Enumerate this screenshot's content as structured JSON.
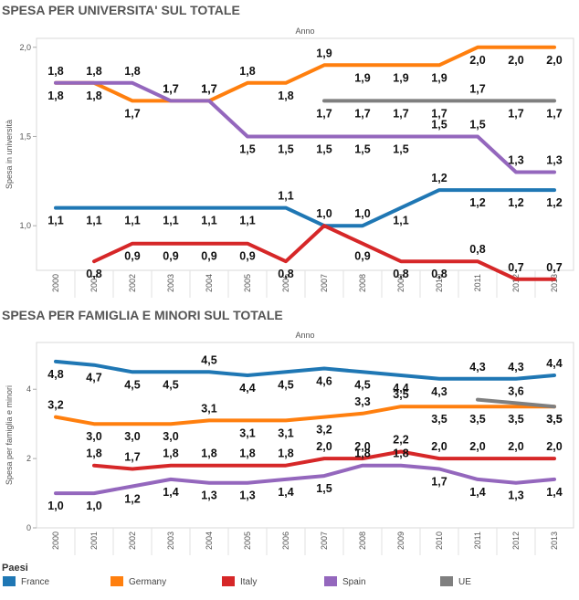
{
  "legend": {
    "title": "Paesi",
    "items": [
      {
        "name": "France",
        "color": "#1f77b4"
      },
      {
        "name": "Germany",
        "color": "#ff7f0e"
      },
      {
        "name": "Italy",
        "color": "#d62728"
      },
      {
        "name": "Spain",
        "color": "#9467bd"
      },
      {
        "name": "UE",
        "color": "#7f7f7f"
      }
    ]
  },
  "chart_data": [
    {
      "type": "line",
      "title": "SPESA PER UNIVERSITA' SUL TOTALE",
      "xlabel": "Anno",
      "ylabel": "Spesa in università",
      "categories": [
        "2000",
        "2001",
        "2002",
        "2003",
        "2004",
        "2005",
        "2006",
        "2007",
        "2008",
        "2009",
        "2010",
        "2011",
        "2012",
        "2013"
      ],
      "yticks": [
        1.0,
        1.5,
        2.0
      ],
      "ytick_labels": [
        "1,0",
        "1,5",
        "2,0"
      ],
      "ylim": [
        0.75,
        2.05
      ],
      "grid": false,
      "series": [
        {
          "name": "France",
          "color": "#1f77b4",
          "values": [
            1.1,
            1.1,
            1.1,
            1.1,
            1.1,
            1.1,
            1.1,
            1.0,
            1.0,
            1.1,
            1.2,
            1.2,
            1.2,
            1.2
          ],
          "labels": [
            "1,1",
            "1,1",
            "1,1",
            "1,1",
            "1,1",
            "1,1",
            "1,1",
            "1,0",
            "1,0",
            "1,1",
            "1,2",
            "1,2",
            "1,2",
            "1,2"
          ]
        },
        {
          "name": "Germany",
          "color": "#ff7f0e",
          "values": [
            1.8,
            1.8,
            1.7,
            1.7,
            1.7,
            1.8,
            1.8,
            1.9,
            1.9,
            1.9,
            1.9,
            2.0,
            2.0,
            2.0
          ],
          "labels": [
            "1,8",
            "1,8",
            "1,7",
            "1,7",
            "1,7",
            "1,8",
            "1,8",
            "1,9",
            "1,9",
            "1,9",
            "1,9",
            "2,0",
            "2,0",
            "2,0"
          ]
        },
        {
          "name": "Italy",
          "color": "#d62728",
          "values": [
            null,
            0.8,
            0.9,
            0.9,
            0.9,
            0.9,
            0.8,
            1.0,
            0.9,
            0.8,
            0.8,
            0.8,
            0.7,
            0.7
          ],
          "labels": [
            null,
            "0,8",
            "0,9",
            "0,9",
            "0,9",
            "0,9",
            "0,8",
            null,
            "0,9",
            "0,8",
            "0,8",
            "0,8",
            "0,7",
            "0,7"
          ]
        },
        {
          "name": "Spain",
          "color": "#9467bd",
          "values": [
            1.8,
            1.8,
            1.8,
            1.7,
            1.7,
            1.5,
            1.5,
            1.5,
            1.5,
            1.5,
            1.5,
            1.5,
            1.3,
            1.3
          ],
          "labels": [
            "1,8",
            "1,8",
            "1,8",
            "1,7",
            "1,7",
            "1,5",
            "1,5",
            "1,5",
            "1,5",
            "1,5",
            "1,5",
            "1,5",
            "1,3",
            "1,3"
          ]
        },
        {
          "name": "UE",
          "color": "#7f7f7f",
          "values": [
            null,
            null,
            null,
            null,
            null,
            null,
            null,
            1.7,
            1.7,
            1.7,
            1.7,
            1.7,
            1.7,
            1.7
          ],
          "labels": [
            null,
            null,
            null,
            null,
            null,
            null,
            null,
            "1,7",
            "1,7",
            "1,7",
            "1,7",
            "1,7",
            "1,7",
            "1,7"
          ]
        }
      ]
    },
    {
      "type": "line",
      "title": "SPESA PER FAMIGLIA E MINORI SUL TOTALE",
      "xlabel": "Anno",
      "ylabel": "Spesa per famiglia e minori",
      "categories": [
        "2000",
        "2001",
        "2002",
        "2003",
        "2004",
        "2005",
        "2006",
        "2007",
        "2008",
        "2009",
        "2010",
        "2011",
        "2012",
        "2013"
      ],
      "yticks": [
        0,
        2,
        4
      ],
      "ytick_labels": [
        "0",
        "2",
        "4"
      ],
      "ylim": [
        0,
        5.35
      ],
      "grid": false,
      "series": [
        {
          "name": "France",
          "color": "#1f77b4",
          "values": [
            4.8,
            4.7,
            4.5,
            4.5,
            4.5,
            4.4,
            4.5,
            4.6,
            4.5,
            4.4,
            4.3,
            4.3,
            4.3,
            4.4
          ],
          "labels": [
            "4,8",
            "4,7",
            "4,5",
            "4,5",
            "4,5",
            "4,4",
            "4,5",
            "4,6",
            "4,5",
            "4,4",
            "4,3",
            "4,3",
            "4,3",
            "4,4"
          ]
        },
        {
          "name": "Germany",
          "color": "#ff7f0e",
          "values": [
            3.2,
            3.0,
            3.0,
            3.0,
            3.1,
            3.1,
            3.1,
            3.2,
            3.3,
            3.5,
            3.5,
            3.5,
            3.5,
            3.5
          ],
          "labels": [
            "3,2",
            "3,0",
            "3,0",
            "3,0",
            "3,1",
            "3,1",
            "3,1",
            "3,2",
            "3,3",
            "3,5",
            "3,5",
            "3,5",
            "3,5",
            "3,5"
          ]
        },
        {
          "name": "Italy",
          "color": "#d62728",
          "values": [
            null,
            1.8,
            1.7,
            1.8,
            1.8,
            1.8,
            1.8,
            2.0,
            2.0,
            2.2,
            2.0,
            2.0,
            2.0,
            2.0
          ],
          "labels": [
            null,
            "1,8",
            "1,7",
            "1,8",
            "1,8",
            "1,8",
            "1,8",
            "2,0",
            "2,0",
            "2,2",
            "2,0",
            "2,0",
            "2,0",
            "2,0"
          ]
        },
        {
          "name": "Spain",
          "color": "#9467bd",
          "values": [
            1.0,
            1.0,
            1.2,
            1.4,
            1.3,
            1.3,
            1.4,
            1.5,
            1.8,
            1.8,
            1.7,
            1.4,
            1.3,
            1.4
          ],
          "labels": [
            "1,0",
            "1,0",
            "1,2",
            "1,4",
            "1,3",
            "1,3",
            "1,4",
            "1,5",
            "1,8",
            "1,8",
            "1,7",
            "1,4",
            "1,3",
            "1,4"
          ]
        },
        {
          "name": "UE",
          "color": "#7f7f7f",
          "values": [
            null,
            null,
            null,
            null,
            null,
            null,
            null,
            null,
            null,
            null,
            null,
            3.7,
            3.6,
            3.5
          ],
          "labels": [
            null,
            null,
            null,
            null,
            null,
            null,
            null,
            null,
            null,
            null,
            null,
            null,
            "3,6",
            "3,5"
          ]
        }
      ]
    }
  ]
}
